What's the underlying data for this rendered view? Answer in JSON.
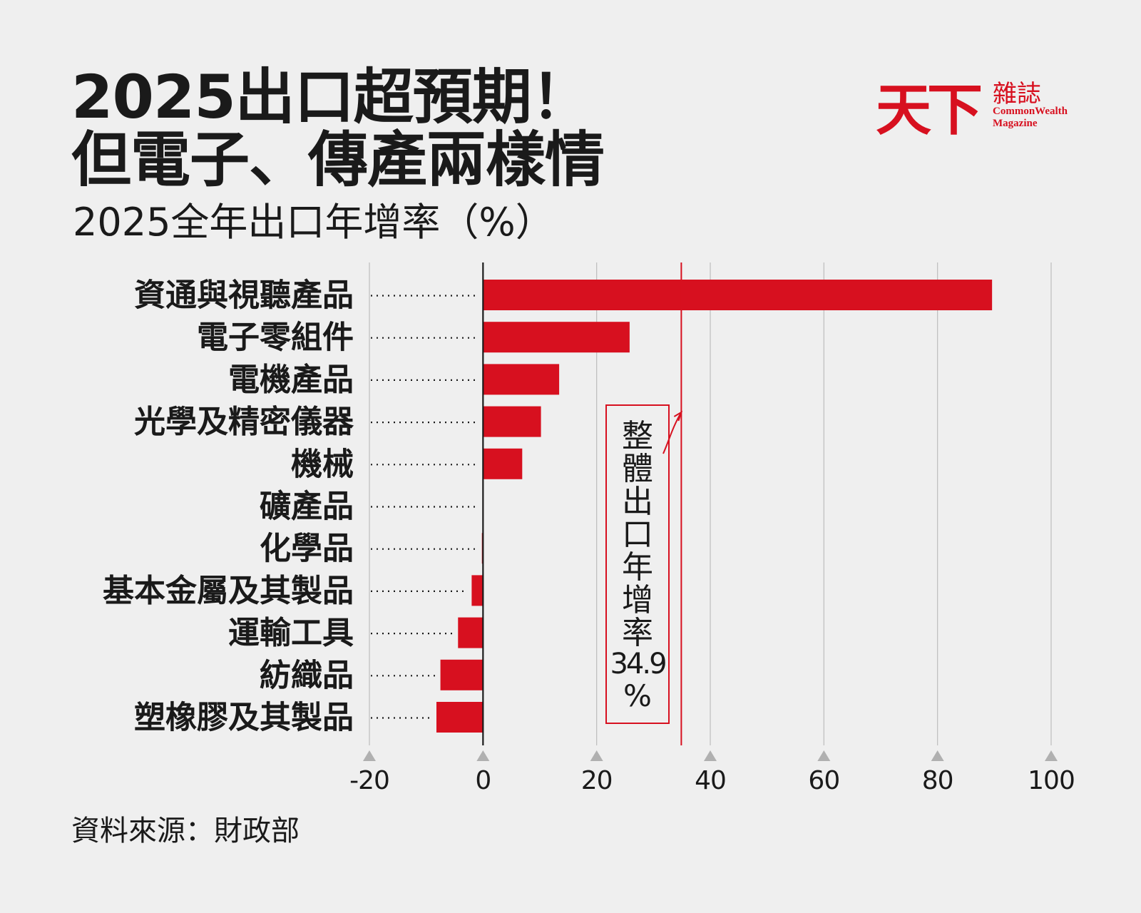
{
  "title": {
    "line1": "2025出口超預期！",
    "line2": "但電子、傳產兩樣情",
    "subtitle": "2025全年出口年增率（%）"
  },
  "logo": {
    "mark": "天下",
    "name": "雜誌",
    "english_line1": "CommonWealth",
    "english_line2": "Magazine"
  },
  "source": "資料來源：財政部",
  "colors": {
    "bar": "#d7101f",
    "reference_line": "#d7101f",
    "annotation_border": "#d7101f",
    "gridline": "#bdbdbd",
    "tick_marker": "#b0b0b0",
    "background": "#efefef",
    "text": "#1a1a1a"
  },
  "chart_data": {
    "type": "bar",
    "orientation": "horizontal",
    "categories": [
      "資通與視聽產品",
      "電子零組件",
      "電機產品",
      "光學及精密儀器",
      "機械",
      "礦產品",
      "化學品",
      "基本金屬及其製品",
      "運輸工具",
      "紡織品",
      "塑橡膠及其製品"
    ],
    "values": [
      89.6,
      25.8,
      13.4,
      10.2,
      6.9,
      -0.1,
      -0.2,
      -2.0,
      -4.4,
      -7.5,
      -8.2
    ],
    "xlim": [
      -20,
      100
    ],
    "xticks": [
      "-20",
      "0",
      "20",
      "40",
      "60",
      "80",
      "100"
    ],
    "xtick_values": [
      -20,
      0,
      20,
      40,
      60,
      80,
      100
    ],
    "grid": true,
    "legend": "none",
    "reference_line": {
      "value": 34.9,
      "label_chars": [
        "整",
        "體",
        "出",
        "口",
        "年",
        "增",
        "率"
      ],
      "value_label": "34.9",
      "unit_label": "%"
    }
  }
}
